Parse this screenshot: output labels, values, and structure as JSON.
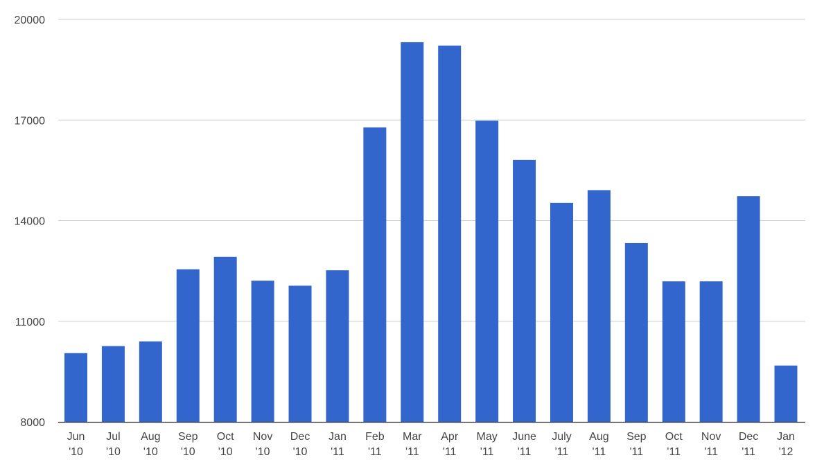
{
  "chart_data": {
    "type": "bar",
    "title": "",
    "xlabel": "",
    "ylabel": "",
    "categories": [
      {
        "month": "Jun",
        "year": "'10"
      },
      {
        "month": "Jul",
        "year": "'10"
      },
      {
        "month": "Aug",
        "year": "'10"
      },
      {
        "month": "Sep",
        "year": "'10"
      },
      {
        "month": "Oct",
        "year": "'10"
      },
      {
        "month": "Nov",
        "year": "'10"
      },
      {
        "month": "Dec",
        "year": "'10"
      },
      {
        "month": "Jan",
        "year": "'11"
      },
      {
        "month": "Feb",
        "year": "'11"
      },
      {
        "month": "Mar",
        "year": "'11"
      },
      {
        "month": "Apr",
        "year": "'11"
      },
      {
        "month": "May",
        "year": "'11"
      },
      {
        "month": "June",
        "year": "'11"
      },
      {
        "month": "July",
        "year": "'11"
      },
      {
        "month": "Aug",
        "year": "'11"
      },
      {
        "month": "Sep",
        "year": "'11"
      },
      {
        "month": "Oct",
        "year": "'11"
      },
      {
        "month": "Nov",
        "year": "'11"
      },
      {
        "month": "Dec",
        "year": "'11"
      },
      {
        "month": "Jan",
        "year": "'12"
      }
    ],
    "values": [
      10050,
      10260,
      10400,
      12550,
      12920,
      12210,
      12060,
      12520,
      16780,
      19320,
      19220,
      16980,
      15810,
      14530,
      14910,
      13330,
      12190,
      12190,
      14730,
      9680
    ],
    "ylim": [
      8000,
      20000
    ],
    "yticks": [
      8000,
      11000,
      14000,
      17000,
      20000
    ],
    "grid": true,
    "legend": "none",
    "colors": {
      "bar": "#3366cc",
      "grid": "#cccccc",
      "axis": "#333333",
      "text": "#444444"
    }
  }
}
